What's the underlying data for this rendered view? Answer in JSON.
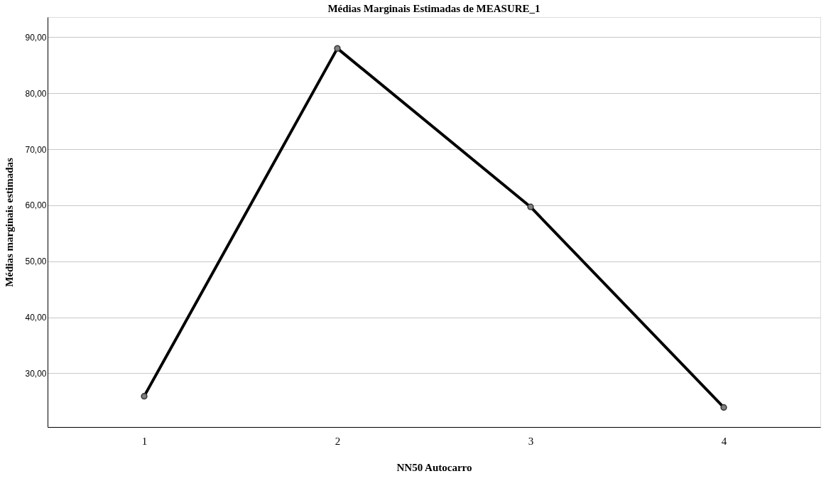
{
  "chart_data": {
    "type": "line",
    "title": "Médias Marginais Estimadas de MEASURE_1",
    "xlabel": "NN50 Autocarro",
    "ylabel": "Médias marginais estimadas",
    "categories": [
      "1",
      "2",
      "3",
      "4"
    ],
    "series": [
      {
        "color": "#000000",
        "values": [
          25.9,
          88.0,
          59.7,
          23.9
        ]
      }
    ],
    "ylim": [
      20.4,
      93.6
    ],
    "yticks": [
      {
        "value": 30,
        "label": "30,00"
      },
      {
        "value": 40,
        "label": "40,00"
      },
      {
        "value": 50,
        "label": "50,00"
      },
      {
        "value": 60,
        "label": "60,00"
      },
      {
        "value": 70,
        "label": "70,00"
      },
      {
        "value": 80,
        "label": "80,00"
      },
      {
        "value": 90,
        "label": "90,00"
      }
    ],
    "grid": "y",
    "marker": "circle",
    "line_style": "solid"
  }
}
